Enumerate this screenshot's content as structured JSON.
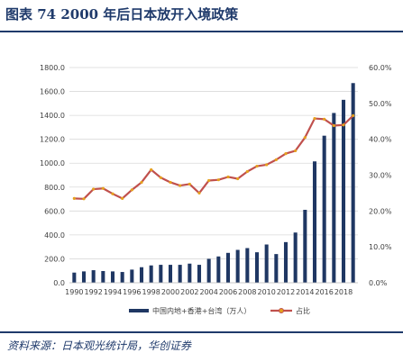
{
  "figure": {
    "title": "图表 74   2000 年后日本放开入境政策",
    "source": "资料来源：日本观光统计局，华创证券"
  },
  "colors": {
    "bar": "#1f3763",
    "line": "#c0504d",
    "marker": "#e5a11f",
    "grid": "#d9d9d9",
    "heading": "#1f3a6b"
  },
  "chart_data": {
    "type": "bar",
    "categories": [
      "1990",
      "1991",
      "1992",
      "1993",
      "1994",
      "1995",
      "1996",
      "1997",
      "1998",
      "1999",
      "2000",
      "2001",
      "2002",
      "2003",
      "2004",
      "2005",
      "2006",
      "2007",
      "2008",
      "2009",
      "2010",
      "2011",
      "2012",
      "2013",
      "2014",
      "2015",
      "2016",
      "2017",
      "2018",
      "2019"
    ],
    "x_tick_labels": [
      "1990",
      "1992",
      "1994",
      "1996",
      "1998",
      "2000",
      "2002",
      "2004",
      "2006",
      "2008",
      "2010",
      "2012",
      "2014",
      "2016",
      "2018"
    ],
    "y_left": {
      "lim": [
        0,
        1800
      ],
      "ticks": [
        "0.0",
        "200.0",
        "400.0",
        "600.0",
        "800.0",
        "1000.0",
        "1200.0",
        "1400.0",
        "1600.0",
        "1800.0"
      ]
    },
    "y_right": {
      "lim": [
        0,
        60
      ],
      "ticks": [
        "0.0%",
        "10.0%",
        "20.0%",
        "30.0%",
        "40.0%",
        "50.0%",
        "60.0%"
      ]
    },
    "series": [
      {
        "name": "中国内地+香港+台湾（万人）",
        "kind": "bar",
        "axis": "left",
        "values": [
          85,
          95,
          105,
          98,
          95,
          90,
          110,
          130,
          145,
          150,
          150,
          150,
          160,
          150,
          200,
          220,
          250,
          275,
          290,
          255,
          320,
          240,
          340,
          420,
          610,
          1015,
          1230,
          1420,
          1530,
          1670
        ]
      },
      {
        "name": "占比",
        "kind": "line",
        "axis": "right",
        "values": [
          23.5,
          23.4,
          26.1,
          26.3,
          24.8,
          23.5,
          25.9,
          28.0,
          31.5,
          29.3,
          28.0,
          27.1,
          27.5,
          25.0,
          28.5,
          28.7,
          29.5,
          29.0,
          31.0,
          32.5,
          32.9,
          34.3,
          36.0,
          36.8,
          40.5,
          45.8,
          45.6,
          43.8,
          44.0,
          46.6
        ]
      }
    ],
    "legend": "bottom",
    "grid": true
  }
}
